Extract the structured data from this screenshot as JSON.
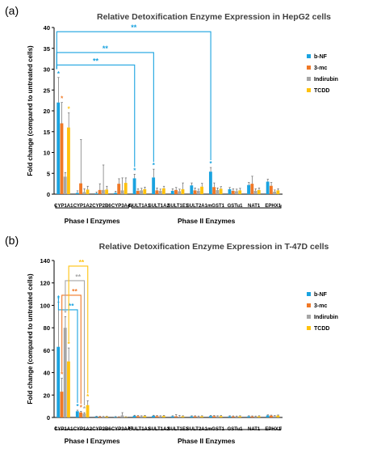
{
  "colors": {
    "b-NF": "#1aa3e0",
    "3-mc": "#f07826",
    "Indirubin": "#a6a6a6",
    "TCDD": "#ffc20e"
  },
  "chart_data": [
    {
      "panel_label": "(a)",
      "type": "bar",
      "title": "Relative Detoxification Enzyme Expression in HepG2 cells",
      "ylabel": "Fold change (compared to untreated cells)",
      "xlabel": "",
      "ylim": [
        0,
        40
      ],
      "yticks": [
        0,
        5,
        10,
        15,
        20,
        25,
        30,
        35,
        40
      ],
      "grid": false,
      "legend_position": "right",
      "categories": [
        "CYP1A1",
        "CYP1A2",
        "CYP2B6",
        "CYP3A4",
        "SULT1A1",
        "SULT1A2",
        "SULT1E1",
        "SULT2A1",
        "mGST1",
        "GSTu1",
        "NAT1",
        "EPHX1"
      ],
      "series": [
        {
          "name": "b-NF",
          "values": [
            22,
            0.3,
            0.2,
            0.3,
            3.8,
            4.0,
            0.8,
            2.1,
            5.4,
            1.2,
            2.2,
            3.0
          ],
          "errors": [
            6,
            0.5,
            0.3,
            0.4,
            1.0,
            2.0,
            0.5,
            0.6,
            1.0,
            0.4,
            0.6,
            0.6
          ]
        },
        {
          "name": "3-mc",
          "values": [
            17,
            2.6,
            1.0,
            2.5,
            0.8,
            0.9,
            1.0,
            0.9,
            1.7,
            0.8,
            2.5,
            2.0
          ],
          "errors": [
            5,
            10.5,
            1.5,
            1.2,
            0.5,
            0.6,
            0.6,
            0.6,
            1.0,
            0.5,
            1.8,
            0.8
          ]
        },
        {
          "name": "Indirubin",
          "values": [
            4.2,
            0.5,
            1.0,
            0.9,
            0.9,
            0.8,
            0.7,
            0.8,
            1.0,
            0.7,
            0.8,
            0.6
          ],
          "errors": [
            1,
            0.8,
            6.0,
            3.0,
            0.5,
            0.4,
            0.5,
            0.4,
            0.5,
            0.5,
            0.5,
            0.4
          ]
        },
        {
          "name": "TCDD",
          "values": [
            16,
            1.1,
            1.1,
            2.7,
            1.2,
            1.4,
            1.2,
            1.8,
            1.3,
            0.9,
            1.0,
            0.9
          ],
          "errors": [
            3.5,
            0.8,
            0.8,
            1.2,
            0.5,
            0.5,
            1.5,
            0.8,
            0.5,
            0.5,
            0.5,
            0.4
          ]
        }
      ],
      "significance": [
        {
          "from": "CYP1A1",
          "to": "SULT1A1",
          "label": "**"
        },
        {
          "from": "CYP1A1",
          "to": "SULT1A2",
          "label": "**"
        },
        {
          "from": "CYP1A1",
          "to": "mGST1",
          "label": "**"
        }
      ],
      "single_stars": [
        {
          "category": "CYP1A1",
          "series": "b-NF",
          "label": "*"
        },
        {
          "category": "CYP1A1",
          "series": "3-mc",
          "label": "*"
        },
        {
          "category": "CYP1A1",
          "series": "TCDD",
          "label": "*"
        },
        {
          "category": "SULT1A1",
          "series": "b-NF",
          "label": "*"
        },
        {
          "category": "SULT1A2",
          "series": "b-NF",
          "label": "*"
        },
        {
          "category": "mGST1",
          "series": "b-NF",
          "label": "*"
        }
      ],
      "groups": [
        {
          "label": "Phase I Enzymes",
          "first": "CYP1A1",
          "last": "CYP3A4"
        },
        {
          "label": "Phase II Enzymes",
          "first": "SULT1A1",
          "last": "EPHX1"
        }
      ]
    },
    {
      "panel_label": "(b)",
      "type": "bar",
      "title": "Relative Detoxification Enzyme Expression in T-47D cells",
      "ylabel": "Fold change (compared to untreated cells)",
      "xlabel": "",
      "ylim": [
        0,
        140
      ],
      "yticks": [
        0,
        20,
        40,
        60,
        80,
        100,
        120,
        140
      ],
      "grid": false,
      "legend_position": "right",
      "categories": [
        "CYP1A1",
        "CYP1A2",
        "CYP2B6",
        "CYP3A4",
        "SULT1A1",
        "SULT1A2",
        "SULT1E1",
        "SULT2A1",
        "mGST1",
        "GSTu1",
        "NAT1",
        "EPHX1"
      ],
      "series": [
        {
          "name": "b-NF",
          "values": [
            63,
            5.5,
            0.8,
            0.5,
            1.5,
            1.5,
            1.0,
            1.0,
            1.3,
            1.0,
            1.0,
            1.8
          ],
          "errors": [
            40,
            1.0,
            0.3,
            0.3,
            0.5,
            0.5,
            0.5,
            0.5,
            0.5,
            0.5,
            0.5,
            0.5
          ]
        },
        {
          "name": "3-mc",
          "values": [
            23,
            4.5,
            0.7,
            0.4,
            1.2,
            1.2,
            1.0,
            1.0,
            1.2,
            0.9,
            0.9,
            1.6
          ],
          "errors": [
            12,
            1.0,
            0.3,
            0.3,
            0.5,
            0.5,
            1.5,
            0.5,
            0.5,
            0.5,
            0.5,
            0.5
          ]
        },
        {
          "name": "Indirubin",
          "values": [
            80,
            3.5,
            0.6,
            1.8,
            1.0,
            1.0,
            0.8,
            0.8,
            1.0,
            0.8,
            0.8,
            1.2
          ],
          "errors": [
            10,
            0.8,
            0.3,
            2.5,
            0.5,
            0.5,
            1.0,
            0.5,
            0.5,
            0.5,
            0.5,
            0.5
          ]
        },
        {
          "name": "TCDD",
          "values": [
            50,
            11,
            0.8,
            0.4,
            1.3,
            1.3,
            1.0,
            1.0,
            1.2,
            1.0,
            1.0,
            1.7
          ],
          "errors": [
            12,
            4.0,
            0.3,
            0.3,
            0.5,
            0.5,
            0.5,
            0.5,
            0.5,
            0.5,
            0.5,
            0.5
          ]
        }
      ],
      "significance": [
        {
          "from": "CYP1A1",
          "to": "CYP1A2",
          "label": "**",
          "series": "b-NF"
        },
        {
          "from": "CYP1A1",
          "to": "CYP1A2",
          "label": "**",
          "series": "3-mc"
        },
        {
          "from": "CYP1A1",
          "to": "CYP1A2",
          "label": "**",
          "series": "Indirubin"
        },
        {
          "from": "CYP1A1",
          "to": "CYP1A2",
          "label": "**",
          "series": "TCDD"
        }
      ],
      "single_stars": [
        {
          "category": "CYP1A1",
          "series": "b-NF",
          "label": "*"
        },
        {
          "category": "CYP1A1",
          "series": "3-mc",
          "label": "*"
        },
        {
          "category": "CYP1A1",
          "series": "Indirubin",
          "label": "*"
        },
        {
          "category": "CYP1A1",
          "series": "TCDD",
          "label": "*"
        },
        {
          "category": "CYP1A2",
          "series": "b-NF",
          "label": "*"
        },
        {
          "category": "CYP1A2",
          "series": "3-mc",
          "label": "*"
        },
        {
          "category": "CYP1A2",
          "series": "Indirubin",
          "label": "*"
        },
        {
          "category": "CYP1A2",
          "series": "TCDD",
          "label": "*"
        }
      ],
      "groups": [
        {
          "label": "Phase I Enzymes",
          "first": "CYP1A1",
          "last": "CYP3A4"
        },
        {
          "label": "Phase II Enzymes",
          "first": "SULT1A1",
          "last": "EPHX1"
        }
      ]
    }
  ]
}
